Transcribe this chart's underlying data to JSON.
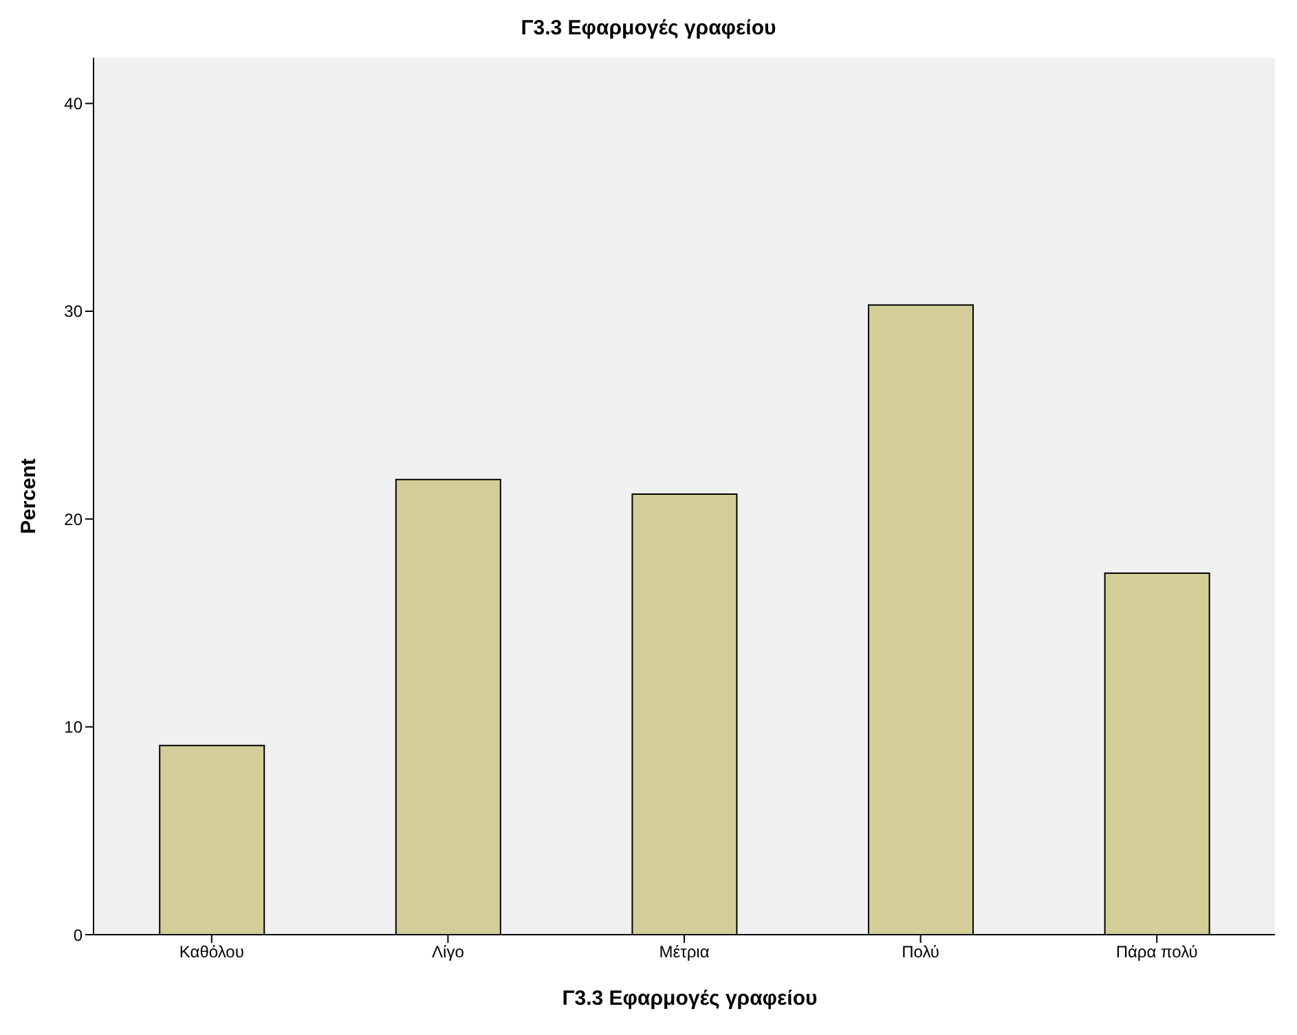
{
  "chart_data": {
    "type": "bar",
    "title": "Γ3.3 Εφαρμογές γραφείου",
    "xlabel": "Γ3.3 Εφαρμογές γραφείου",
    "ylabel": "Percent",
    "categories": [
      "Καθόλου",
      "Λίγο",
      "Μέτρια",
      "Πολύ",
      "Πάρα πολύ"
    ],
    "values": [
      9.1,
      21.9,
      21.2,
      30.3,
      17.4
    ],
    "color": "#d3ce97",
    "ylim": [
      0,
      42.2
    ],
    "yticks": [
      0,
      10,
      20,
      30,
      40
    ],
    "grid": false
  }
}
